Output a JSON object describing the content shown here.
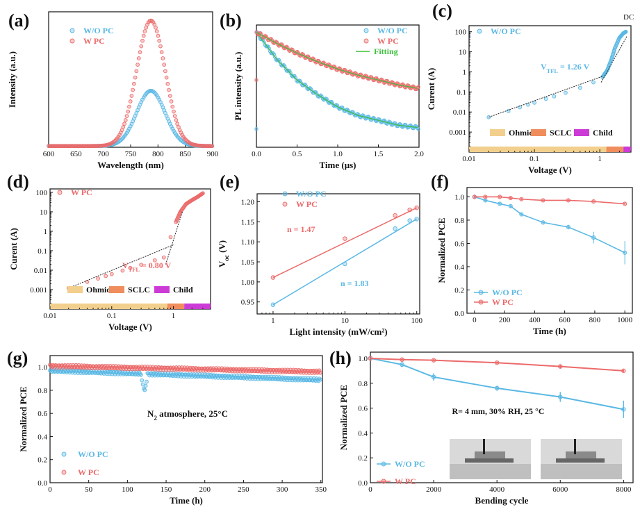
{
  "colors": {
    "blue": "#5ab8e4",
    "red": "#ec6a6a",
    "green": "#3fbf3f",
    "ohmic": "#f2cf8c",
    "sclc": "#ef8d5c",
    "child": "#cc3bd6",
    "fit": "#222222"
  },
  "corner_text": "DC",
  "chart_data": [
    {
      "id": "a",
      "panel_label": "(a)",
      "type": "line",
      "xlabel": "Wavelength (nm)",
      "ylabel": "Intensity (a.u.)",
      "xlim": [
        600,
        900
      ],
      "ylim": [
        0,
        1.08
      ],
      "xticks": [
        600,
        650,
        700,
        750,
        800,
        850,
        900
      ],
      "yticks_hidden": true,
      "series": [
        {
          "name": "W/O PC",
          "color": "blue",
          "peak_x": 787,
          "peak_y": 0.44,
          "sigma": 26
        },
        {
          "name": "W PC",
          "color": "red",
          "peak_x": 787,
          "peak_y": 1.0,
          "sigma": 26
        }
      ]
    },
    {
      "id": "b",
      "panel_label": "(b)",
      "type": "scatter",
      "xlabel": "Time (μs)",
      "ylabel": "PL intensity (a.u.)",
      "xlim": [
        0,
        2
      ],
      "ylim": [
        0,
        1
      ],
      "xticks": [
        0.0,
        0.5,
        1.0,
        1.5,
        2.0
      ],
      "yticks_hidden": true,
      "series": [
        {
          "name": "W/O PC",
          "color": "blue",
          "x": [
            0,
            0.25,
            0.5,
            0.75,
            1.0,
            1.25,
            1.5,
            1.75,
            2.0
          ],
          "y": [
            0.94,
            0.72,
            0.55,
            0.43,
            0.33,
            0.26,
            0.22,
            0.18,
            0.16
          ]
        },
        {
          "name": "W PC",
          "color": "red",
          "x": [
            0,
            0.25,
            0.5,
            0.75,
            1.0,
            1.25,
            1.5,
            1.75,
            2.0
          ],
          "y": [
            0.94,
            0.85,
            0.77,
            0.7,
            0.64,
            0.59,
            0.55,
            0.51,
            0.48
          ]
        },
        {
          "name": "Fitting",
          "color": "green"
        }
      ]
    },
    {
      "id": "c",
      "panel_label": "(c)",
      "type": "scatter",
      "xlabel": "Voltage (V)",
      "ylabel": "Curent (A)",
      "xscale": "log",
      "yscale": "log",
      "xlim": [
        0.01,
        3
      ],
      "ylim": [
        0.0001,
        200
      ],
      "xticks": [
        0.01,
        0.1,
        1
      ],
      "xtick_labels": [
        "0.01",
        "0.1",
        "1"
      ],
      "yticks": [
        0.001,
        0.01,
        0.1,
        1,
        10,
        100
      ],
      "ytick_labels": [
        "0.001",
        "0.01",
        "0.1",
        "1",
        "10",
        "100"
      ],
      "annotation": {
        "main": "V",
        "sub": "TFL",
        "rest": " = 1.26 V",
        "x": 0.17,
        "y": 2
      },
      "bands": [
        {
          "name": "Ohmic",
          "from": 0.01,
          "to": 1.26,
          "color": "ohmic"
        },
        {
          "name": "SCLC",
          "from": 1.26,
          "to": 2.3,
          "color": "sclc"
        },
        {
          "name": "Child",
          "from": 2.3,
          "to": 3,
          "color": "child"
        }
      ],
      "series": [
        {
          "name": "W/O PC",
          "color": "blue",
          "x": [
            0.02,
            0.04,
            0.06,
            0.08,
            0.1,
            0.15,
            0.2,
            0.3,
            0.5,
            0.8,
            1.1,
            1.3,
            1.5,
            1.7,
            2.0,
            2.3,
            2.5
          ],
          "y": [
            0.0055,
            0.011,
            0.017,
            0.023,
            0.029,
            0.045,
            0.06,
            0.09,
            0.16,
            0.3,
            0.55,
            1.2,
            4,
            15,
            50,
            85,
            100
          ]
        }
      ]
    },
    {
      "id": "d",
      "panel_label": "(d)",
      "type": "scatter",
      "xlabel": "Voltage (V)",
      "ylabel": "Curent (A)",
      "xscale": "log",
      "yscale": "log",
      "xlim": [
        0.01,
        4
      ],
      "ylim": [
        0.0001,
        150
      ],
      "xticks": [
        0.01,
        0.1,
        1
      ],
      "xtick_labels": [
        "0.01",
        "0.1",
        "1"
      ],
      "yticks": [
        0.001,
        0.01,
        0.1,
        1,
        10,
        100
      ],
      "ytick_labels": [
        "0.001",
        "0.01",
        "0.1",
        "1",
        "10",
        "100"
      ],
      "annotation": {
        "main": "V",
        "sub": "TFL",
        "rest": " = 0.80 V",
        "x": 0.12,
        "y": 0.2
      },
      "bands": [
        {
          "name": "Ohmic",
          "from": 0.01,
          "to": 0.8,
          "color": "ohmic"
        },
        {
          "name": "SCLC",
          "from": 0.8,
          "to": 1.5,
          "color": "sclc"
        },
        {
          "name": "Child",
          "from": 1.5,
          "to": 4,
          "color": "child"
        }
      ],
      "series": [
        {
          "name": "W PC",
          "color": "red",
          "x": [
            0.02,
            0.04,
            0.06,
            0.08,
            0.1,
            0.15,
            0.2,
            0.3,
            0.5,
            0.7,
            0.9,
            1.1,
            1.3,
            1.6,
            2.0,
            2.5,
            3.0
          ],
          "y": [
            0.0012,
            0.0025,
            0.0037,
            0.005,
            0.0063,
            0.0095,
            0.013,
            0.019,
            0.032,
            0.045,
            0.5,
            3,
            10,
            25,
            40,
            60,
            90
          ]
        }
      ]
    },
    {
      "id": "e",
      "panel_label": "(e)",
      "type": "scatter",
      "xlabel": "Light intensity (mW/cm²)",
      "ylabel_main": "V",
      "ylabel_sub": "oc",
      "ylabel_rest": " (V)",
      "xscale": "log",
      "xlim": [
        0.6,
        110
      ],
      "ylim": [
        0.92,
        1.22
      ],
      "xticks": [
        1,
        10,
        100
      ],
      "xtick_labels": [
        "1",
        "10",
        "100"
      ],
      "yticks": [
        0.95,
        1.0,
        1.05,
        1.1,
        1.15,
        1.2
      ],
      "ytick_labels": [
        "0.95",
        "1.00",
        "1.05",
        "1.10",
        "1.15",
        "1.20"
      ],
      "series": [
        {
          "name": "W/O PC",
          "color": "blue",
          "x": [
            1,
            10,
            50,
            80,
            100
          ],
          "y": [
            0.943,
            1.045,
            1.133,
            1.153,
            1.157
          ],
          "slope_label": "n = 1.83"
        },
        {
          "name": "W PC",
          "color": "red",
          "x": [
            1,
            10,
            50,
            80,
            100
          ],
          "y": [
            1.011,
            1.108,
            1.166,
            1.18,
            1.185
          ],
          "slope_label": "n = 1.47"
        }
      ]
    },
    {
      "id": "f",
      "panel_label": "(f)",
      "type": "line",
      "xlabel": "Time (h)",
      "ylabel": "Normalized PCE",
      "xlim": [
        -50,
        1050
      ],
      "ylim": [
        0,
        1.08
      ],
      "xticks": [
        0,
        200,
        400,
        600,
        800,
        1000
      ],
      "yticks": [
        0,
        0.2,
        0.4,
        0.6,
        0.8,
        1.0
      ],
      "ytick_labels": [
        "0.0",
        "0.2",
        "0.4",
        "0.6",
        "0.8",
        "1.0"
      ],
      "series": [
        {
          "name": "W/O PC",
          "color": "blue",
          "x": [
            0,
            72,
            168,
            240,
            312,
            456,
            624,
            792,
            1000
          ],
          "y": [
            1.0,
            0.97,
            0.94,
            0.92,
            0.85,
            0.78,
            0.74,
            0.65,
            0.52
          ],
          "err": [
            0.02,
            0.01,
            0.01,
            0.015,
            0.01,
            0.02,
            0.02,
            0.05,
            0.1
          ]
        },
        {
          "name": "W PC",
          "color": "red",
          "x": [
            0,
            72,
            168,
            240,
            312,
            456,
            624,
            792,
            1000
          ],
          "y": [
            1.0,
            1.0,
            1.0,
            0.99,
            0.98,
            0.97,
            0.97,
            0.96,
            0.94
          ],
          "err": [
            0.01,
            0.01,
            0.01,
            0.01,
            0.01,
            0.01,
            0.01,
            0.01,
            0.01
          ]
        }
      ]
    },
    {
      "id": "g",
      "panel_label": "(g)",
      "type": "scatter",
      "xlabel": "Time (h)",
      "ylabel": "Normalized PCE",
      "xlim": [
        0,
        352
      ],
      "ylim": [
        0,
        1.1
      ],
      "xticks": [
        0,
        50,
        100,
        150,
        200,
        250,
        300,
        350
      ],
      "yticks": [
        0,
        0.2,
        0.4,
        0.6,
        0.8,
        1.0
      ],
      "ytick_labels": [
        "0.0",
        "0.2",
        "0.4",
        "0.6",
        "0.8",
        "1.0"
      ],
      "annotation_main": "N",
      "annotation_sub": "2",
      "annotation_rest": " atmosphere, 25°C",
      "series": [
        {
          "name": "W/O PC",
          "color": "blue",
          "trend_start": 0.97,
          "trend_end": 0.89,
          "dip_x": 122,
          "dip_y": 0.79
        },
        {
          "name": "W PC",
          "color": "red",
          "trend_start": 1.01,
          "trend_end": 0.96
        }
      ]
    },
    {
      "id": "h",
      "panel_label": "(h)",
      "type": "line",
      "xlabel": "Bending cycle",
      "ylabel": "Normalized PCE",
      "xlim": [
        0,
        8300
      ],
      "ylim": [
        0,
        1.05
      ],
      "xticks": [
        0,
        2000,
        4000,
        6000,
        8000
      ],
      "yticks": [
        0,
        0.2,
        0.4,
        0.6,
        0.8,
        1.0
      ],
      "ytick_labels": [
        "0.0",
        "0.2",
        "0.4",
        "0.6",
        "0.8",
        "1.0"
      ],
      "annotation": "R= 4 mm, 30% RH, 25 °C",
      "series": [
        {
          "name": "W/O PC",
          "color": "blue",
          "x": [
            0,
            1000,
            2000,
            4000,
            6000,
            8000
          ],
          "y": [
            1.0,
            0.95,
            0.85,
            0.76,
            0.69,
            0.59
          ],
          "err": [
            0,
            0.02,
            0.03,
            0.02,
            0.04,
            0.07
          ]
        },
        {
          "name": "W PC",
          "color": "red",
          "x": [
            0,
            1000,
            2000,
            4000,
            6000,
            8000
          ],
          "y": [
            1.0,
            0.99,
            0.985,
            0.965,
            0.935,
            0.9
          ],
          "err": [
            0,
            0.01,
            0.01,
            0.01,
            0.015,
            0.01
          ]
        }
      ]
    }
  ]
}
